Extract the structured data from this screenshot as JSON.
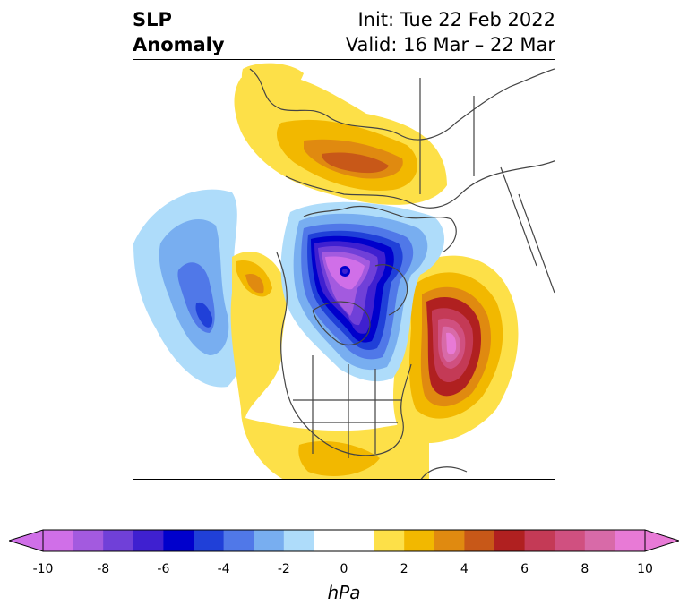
{
  "header": {
    "title_line1": "SLP",
    "title_line2": "Anomaly",
    "init": "Init: Tue 22 Feb 2022",
    "valid": "Valid: 16 Mar – 22 Mar"
  },
  "colorbar": {
    "unit": "hPa",
    "range": [
      -10,
      10
    ],
    "extend": "both",
    "ticks": [
      "-10",
      "-8",
      "-6",
      "-4",
      "-2",
      "0",
      "2",
      "4",
      "6",
      "8",
      "10"
    ],
    "colors": [
      "#d06fe8",
      "#a35adf",
      "#7040d8",
      "#3f20d0",
      "#0000cc",
      "#2040d8",
      "#5078e8",
      "#78aef0",
      "#aedcfa",
      "#ffffff",
      "#ffffff",
      "#fde048",
      "#f2b800",
      "#e08a10",
      "#c85818",
      "#b02020",
      "#c43a56",
      "#d05080",
      "#d86aa8",
      "#e87ad6"
    ]
  },
  "map": {
    "projection": "north-polar stereographic",
    "features": [
      "coastlines",
      "country borders",
      "US state borders"
    ]
  }
}
